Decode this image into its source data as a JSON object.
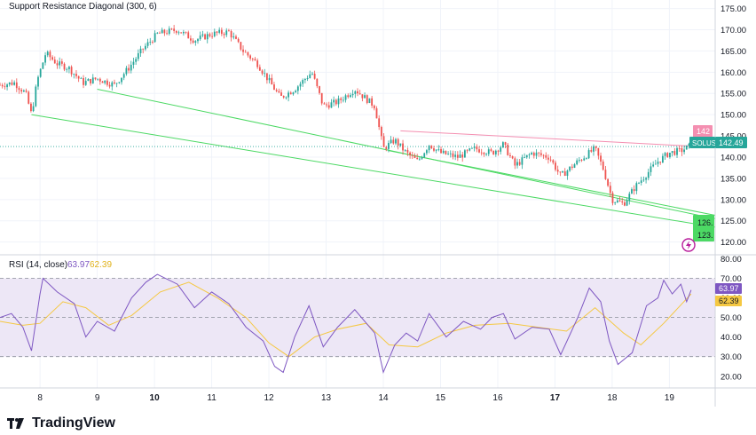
{
  "colors": {
    "up": "#26a69a",
    "down": "#ef5350",
    "support": "#4cd964",
    "resistance": "#f48fb1",
    "rsi": "#7e57c2",
    "rsi_ma": "#f5c842",
    "rsi_band": "#ede7f6",
    "grid": "#f0f3fa",
    "axis_text": "#131722",
    "price_tag": "#26a69a"
  },
  "chart_data": [
    {
      "type": "candlestick",
      "title": "Support Resistance Diagonal (300, 6)",
      "symbol": "SOLUSD",
      "last_price": "142.49",
      "ylim": [
        117,
        177
      ],
      "y_ticks": [
        "120.00",
        "125.00",
        "130.00",
        "135.00",
        "140.00",
        "145.00",
        "150.00",
        "155.00",
        "160.00",
        "165.00",
        "170.00",
        "175.00"
      ],
      "x_ticks": [
        "8",
        "9",
        "10",
        "11",
        "12",
        "13",
        "14",
        "15",
        "16",
        "17",
        "18",
        "19"
      ],
      "x_range_days": [
        7.3,
        19.8
      ],
      "resistance_label": "142",
      "support_labels": [
        "126.",
        "123."
      ],
      "price_path": [
        {
          "t": 7.3,
          "p": 157
        },
        {
          "t": 7.55,
          "p": 157.5
        },
        {
          "t": 7.75,
          "p": 155
        },
        {
          "t": 7.85,
          "p": 150
        },
        {
          "t": 7.95,
          "p": 158
        },
        {
          "t": 8.1,
          "p": 164.5
        },
        {
          "t": 8.3,
          "p": 162
        },
        {
          "t": 8.5,
          "p": 161
        },
        {
          "t": 8.75,
          "p": 157.5
        },
        {
          "t": 9.0,
          "p": 158.5
        },
        {
          "t": 9.3,
          "p": 157
        },
        {
          "t": 9.55,
          "p": 161
        },
        {
          "t": 9.8,
          "p": 165.5
        },
        {
          "t": 10.05,
          "p": 169
        },
        {
          "t": 10.4,
          "p": 170
        },
        {
          "t": 10.7,
          "p": 167.5
        },
        {
          "t": 11.0,
          "p": 169
        },
        {
          "t": 11.3,
          "p": 169.5
        },
        {
          "t": 11.55,
          "p": 165
        },
        {
          "t": 11.8,
          "p": 162
        },
        {
          "t": 12.0,
          "p": 158
        },
        {
          "t": 12.2,
          "p": 154
        },
        {
          "t": 12.45,
          "p": 156
        },
        {
          "t": 12.75,
          "p": 160
        },
        {
          "t": 12.95,
          "p": 152
        },
        {
          "t": 13.2,
          "p": 153
        },
        {
          "t": 13.5,
          "p": 156
        },
        {
          "t": 13.85,
          "p": 152
        },
        {
          "t": 14.0,
          "p": 142
        },
        {
          "t": 14.2,
          "p": 144
        },
        {
          "t": 14.4,
          "p": 141
        },
        {
          "t": 14.6,
          "p": 139
        },
        {
          "t": 14.8,
          "p": 143
        },
        {
          "t": 15.0,
          "p": 141
        },
        {
          "t": 15.3,
          "p": 140
        },
        {
          "t": 15.6,
          "p": 142
        },
        {
          "t": 15.9,
          "p": 141
        },
        {
          "t": 16.1,
          "p": 143
        },
        {
          "t": 16.3,
          "p": 138
        },
        {
          "t": 16.6,
          "p": 141
        },
        {
          "t": 16.9,
          "p": 140
        },
        {
          "t": 17.1,
          "p": 135.5
        },
        {
          "t": 17.4,
          "p": 139
        },
        {
          "t": 17.7,
          "p": 142
        },
        {
          "t": 17.85,
          "p": 137
        },
        {
          "t": 18.0,
          "p": 130
        },
        {
          "t": 18.2,
          "p": 129
        },
        {
          "t": 18.4,
          "p": 133
        },
        {
          "t": 18.6,
          "p": 136
        },
        {
          "t": 18.8,
          "p": 139
        },
        {
          "t": 19.0,
          "p": 141
        },
        {
          "t": 19.2,
          "p": 141.5
        },
        {
          "t": 19.35,
          "p": 142.5
        }
      ],
      "support_lines": [
        {
          "from": {
            "t": 7.85,
            "p": 150
          },
          "to": {
            "t": 19.8,
            "p": 123.5
          }
        },
        {
          "from": {
            "t": 9.0,
            "p": 156
          },
          "to": {
            "t": 19.8,
            "p": 125.5
          }
        },
        {
          "from": {
            "t": 14.1,
            "p": 141.5
          },
          "to": {
            "t": 19.8,
            "p": 126.3
          }
        }
      ],
      "resistance_line": {
        "from": {
          "t": 14.3,
          "p": 146.2
        },
        "to": {
          "t": 19.8,
          "p": 142.3
        }
      }
    },
    {
      "type": "line",
      "title": "RSI (14, close)",
      "rsi_value": "63.97",
      "rsi_ma_value": "62.39",
      "ylim": [
        14,
        82
      ],
      "y_ticks": [
        "20.00",
        "30.00",
        "40.00",
        "50.00",
        "60.00",
        "70.00",
        "80.00"
      ],
      "band": [
        30,
        70
      ],
      "mid": 50,
      "rsi_path": [
        {
          "t": 7.3,
          "v": 50
        },
        {
          "t": 7.5,
          "v": 52
        },
        {
          "t": 7.7,
          "v": 45
        },
        {
          "t": 7.85,
          "v": 33
        },
        {
          "t": 8.0,
          "v": 62
        },
        {
          "t": 8.05,
          "v": 70
        },
        {
          "t": 8.3,
          "v": 63
        },
        {
          "t": 8.6,
          "v": 57
        },
        {
          "t": 8.8,
          "v": 40
        },
        {
          "t": 9.0,
          "v": 48
        },
        {
          "t": 9.3,
          "v": 43
        },
        {
          "t": 9.6,
          "v": 60
        },
        {
          "t": 9.85,
          "v": 68
        },
        {
          "t": 10.05,
          "v": 72
        },
        {
          "t": 10.4,
          "v": 67
        },
        {
          "t": 10.7,
          "v": 55
        },
        {
          "t": 11.0,
          "v": 63
        },
        {
          "t": 11.3,
          "v": 57
        },
        {
          "t": 11.6,
          "v": 45
        },
        {
          "t": 11.9,
          "v": 38
        },
        {
          "t": 12.1,
          "v": 25
        },
        {
          "t": 12.25,
          "v": 22
        },
        {
          "t": 12.45,
          "v": 40
        },
        {
          "t": 12.7,
          "v": 56
        },
        {
          "t": 12.95,
          "v": 35
        },
        {
          "t": 13.2,
          "v": 45
        },
        {
          "t": 13.5,
          "v": 54
        },
        {
          "t": 13.85,
          "v": 42
        },
        {
          "t": 14.0,
          "v": 22
        },
        {
          "t": 14.2,
          "v": 36
        },
        {
          "t": 14.4,
          "v": 42
        },
        {
          "t": 14.6,
          "v": 38
        },
        {
          "t": 14.8,
          "v": 52
        },
        {
          "t": 15.1,
          "v": 40
        },
        {
          "t": 15.4,
          "v": 48
        },
        {
          "t": 15.7,
          "v": 44
        },
        {
          "t": 15.9,
          "v": 50
        },
        {
          "t": 16.1,
          "v": 52
        },
        {
          "t": 16.3,
          "v": 39
        },
        {
          "t": 16.6,
          "v": 45
        },
        {
          "t": 16.9,
          "v": 44
        },
        {
          "t": 17.1,
          "v": 31
        },
        {
          "t": 17.4,
          "v": 50
        },
        {
          "t": 17.6,
          "v": 65
        },
        {
          "t": 17.8,
          "v": 58
        },
        {
          "t": 17.95,
          "v": 38
        },
        {
          "t": 18.1,
          "v": 26
        },
        {
          "t": 18.35,
          "v": 32
        },
        {
          "t": 18.6,
          "v": 56
        },
        {
          "t": 18.8,
          "v": 60
        },
        {
          "t": 18.9,
          "v": 69
        },
        {
          "t": 19.05,
          "v": 62
        },
        {
          "t": 19.2,
          "v": 67
        },
        {
          "t": 19.3,
          "v": 58
        },
        {
          "t": 19.38,
          "v": 64
        }
      ],
      "rsi_ma_path": [
        {
          "t": 7.3,
          "v": 48
        },
        {
          "t": 7.7,
          "v": 46
        },
        {
          "t": 8.0,
          "v": 47
        },
        {
          "t": 8.4,
          "v": 58
        },
        {
          "t": 8.8,
          "v": 55
        },
        {
          "t": 9.2,
          "v": 46
        },
        {
          "t": 9.6,
          "v": 51
        },
        {
          "t": 10.1,
          "v": 63
        },
        {
          "t": 10.6,
          "v": 68
        },
        {
          "t": 11.1,
          "v": 60
        },
        {
          "t": 11.6,
          "v": 50
        },
        {
          "t": 12.0,
          "v": 37
        },
        {
          "t": 12.35,
          "v": 30
        },
        {
          "t": 12.8,
          "v": 40
        },
        {
          "t": 13.2,
          "v": 44
        },
        {
          "t": 13.7,
          "v": 47
        },
        {
          "t": 14.1,
          "v": 36
        },
        {
          "t": 14.6,
          "v": 35
        },
        {
          "t": 15.1,
          "v": 42
        },
        {
          "t": 15.6,
          "v": 46
        },
        {
          "t": 16.2,
          "v": 47
        },
        {
          "t": 16.7,
          "v": 45
        },
        {
          "t": 17.2,
          "v": 43
        },
        {
          "t": 17.7,
          "v": 55
        },
        {
          "t": 18.2,
          "v": 42
        },
        {
          "t": 18.5,
          "v": 36
        },
        {
          "t": 18.9,
          "v": 47
        },
        {
          "t": 19.38,
          "v": 62
        }
      ]
    }
  ],
  "watermark": {
    "text": "TradingView"
  }
}
